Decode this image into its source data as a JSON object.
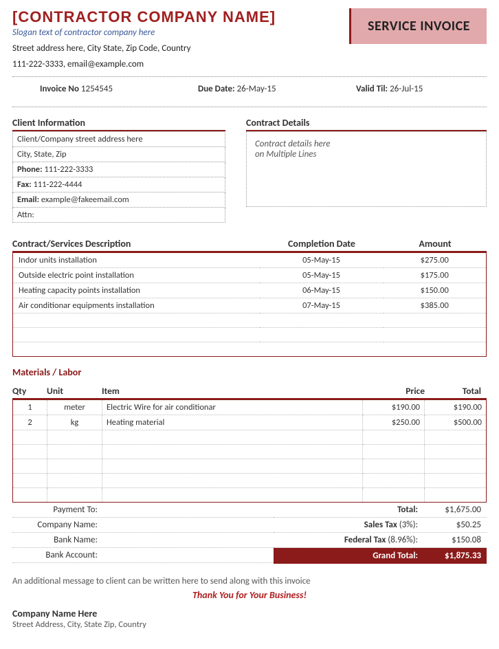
{
  "header": {
    "company_name": "[CONTRACTOR COMPANY NAME]",
    "slogan": "Slogan text of contractor company here",
    "address_line1": "Street address here, City State, Zip Code, Country",
    "address_line2": "111-222-3333, email@example.com",
    "invoice_title": "SERVICE INVOICE"
  },
  "meta": {
    "invoice_no_label": "Invoice No",
    "invoice_no": "1254545",
    "due_date_label": "Due Date:",
    "due_date": "26-May-15",
    "valid_til_label": "Valid Til:",
    "valid_til": "26-Jul-15"
  },
  "client": {
    "title": "Client Information",
    "rows": [
      "Client/Company street address here",
      "City, State, Zip",
      "Phone: 111-222-3333",
      "Fax: 111-222-4444",
      "Email: example@fakeemail.com",
      "Attn:"
    ]
  },
  "contract": {
    "title": "Contract Details",
    "line1": "Contract details here",
    "line2": "on Multiple Lines"
  },
  "services": {
    "col1": "Contract/Services Description",
    "col2": "Completion Date",
    "col3": "Amount",
    "rows": [
      {
        "desc": "Indor units installation",
        "date": "05-May-15",
        "amount": "$275.00"
      },
      {
        "desc": "Outside electric point installation",
        "date": "05-May-15",
        "amount": "$175.00"
      },
      {
        "desc": "Heating capacity points installation",
        "date": "06-May-15",
        "amount": "$150.00"
      },
      {
        "desc": "Air conditionar equipments installation",
        "date": "07-May-15",
        "amount": "$385.00"
      }
    ],
    "empty_rows": 3
  },
  "materials": {
    "title": "Materials / Labor",
    "col1": "Qty",
    "col2": "Unit",
    "col3": "Item",
    "col4": "Price",
    "col5": "Total",
    "rows": [
      {
        "qty": "1",
        "unit": "meter",
        "item": "Electric Wire for air conditionar",
        "price": "$190.00",
        "total": "$190.00"
      },
      {
        "qty": "2",
        "unit": "kg",
        "item": "Heating material",
        "price": "$250.00",
        "total": "$500.00"
      }
    ],
    "empty_rows": 5
  },
  "payment": {
    "to_label": "Payment To:",
    "company_label": "Company Name:",
    "bank_label": "Bank Name:",
    "account_label": "Bank Account:"
  },
  "totals": {
    "total_label": "Total:",
    "total": "$1,675.00",
    "salestax_label": "Sales Tax",
    "salestax_pct": "(3%):",
    "salestax": "$50.25",
    "fedtax_label": "Federal Tax",
    "fedtax_pct": "(8.96%):",
    "fedtax": "$150.08",
    "grand_label": "Grand Total:",
    "grand": "$1,875.33"
  },
  "footer": {
    "message": "An additional message to client can be written here to send along with this invoice",
    "thanks": "Thank You for Your Business!",
    "company": "Company Name Here",
    "address": "Street Address, City, State Zip, Country"
  },
  "colors": {
    "accent": "#8b1a1a",
    "accent_light": "#e2a9ac",
    "slogan": "#3b5998"
  }
}
